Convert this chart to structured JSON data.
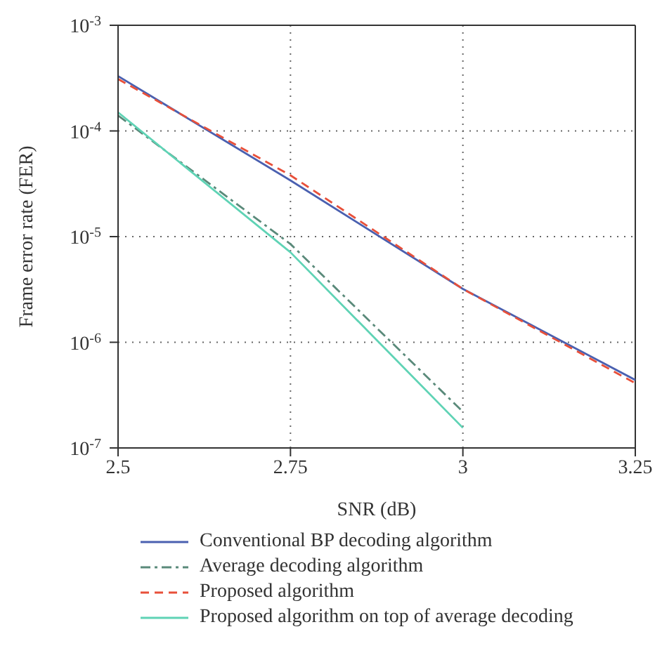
{
  "chart_data": {
    "type": "line",
    "xlabel": "SNR (dB)",
    "ylabel": "Frame error rate (FER)",
    "x": [
      2.5,
      2.75,
      3,
      3.25
    ],
    "series": [
      {
        "name": "Conventional BP decoding algorithm",
        "color": "#4a60b0",
        "line_style": "solid",
        "values": [
          0.00033,
          3.4e-05,
          3.2e-06,
          4.4e-07
        ]
      },
      {
        "name": "Average decoding algorithm",
        "color": "#5a8a7a",
        "line_style": "dashdot",
        "values": [
          0.00014,
          8.5e-06,
          2.2e-07,
          null
        ]
      },
      {
        "name": "Proposed algorithm",
        "color": "#e8503a",
        "line_style": "dashed",
        "values": [
          0.00031,
          3.8e-05,
          3.2e-06,
          4.1e-07
        ]
      },
      {
        "name": "Proposed algorithm on top of average decoding",
        "color": "#5fd3b5",
        "line_style": "solid",
        "values": [
          0.00015,
          7.1e-06,
          1.55e-07,
          null
        ]
      }
    ],
    "xlim": [
      2.5,
      3.25
    ],
    "xticks": [
      2.5,
      2.75,
      3,
      3.25
    ],
    "ylim": [
      1e-07,
      0.001
    ],
    "yticks": [
      {
        "value": 1e-07,
        "label": "10$^{-7}$"
      },
      {
        "value": 1e-06,
        "label": "10$^{-6}$"
      },
      {
        "value": 1e-05,
        "label": "10$^{-5}$"
      },
      {
        "value": 0.0001,
        "label": "10$^{-4}$"
      },
      {
        "value": 0.001,
        "label": "10$^{-3}$"
      }
    ],
    "log": "y",
    "grid": true,
    "legend": "bottom",
    "marker": "none"
  }
}
